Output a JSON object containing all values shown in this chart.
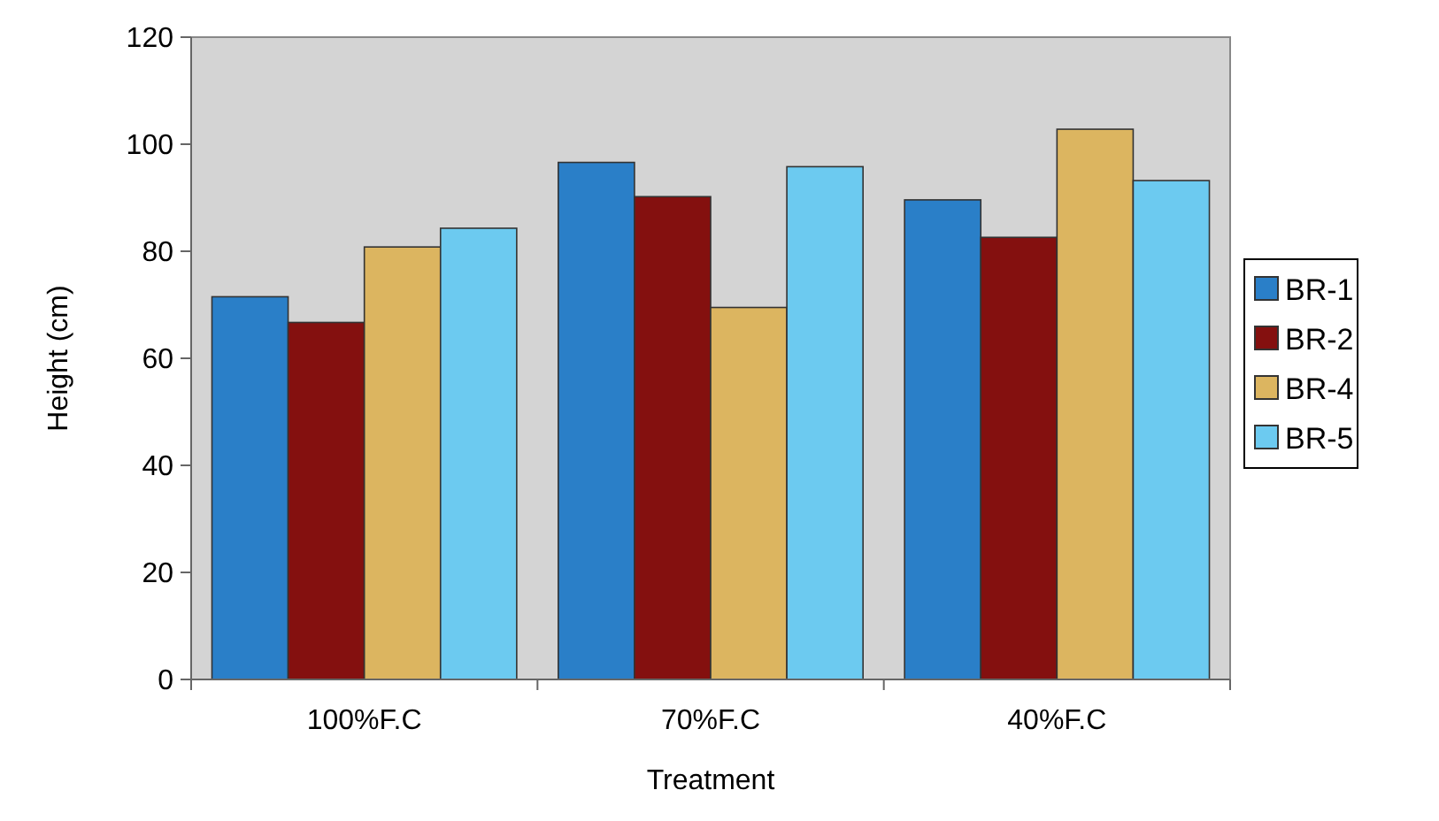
{
  "chart_data": {
    "type": "bar",
    "xlabel": "Treatment",
    "ylabel": "Height (cm)",
    "categories": [
      "100%F.C",
      "70%F.C",
      "40%F.C"
    ],
    "series": [
      {
        "name": "BR-1",
        "color": "#2a7fc8",
        "values": [
          71.5,
          96.6,
          89.6
        ]
      },
      {
        "name": "BR-2",
        "color": "#84100f",
        "values": [
          66.7,
          90.2,
          82.6
        ]
      },
      {
        "name": "BR-4",
        "color": "#dcb560",
        "values": [
          80.8,
          69.5,
          102.8
        ]
      },
      {
        "name": "BR-5",
        "color": "#6ccaf0",
        "values": [
          84.3,
          95.8,
          93.2
        ]
      }
    ],
    "ylim": [
      0,
      120
    ],
    "yticks": [
      0,
      20,
      40,
      60,
      80,
      100,
      120
    ],
    "grid": false,
    "legend": "right"
  }
}
